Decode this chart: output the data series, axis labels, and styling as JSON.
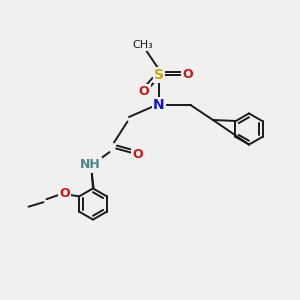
{
  "bg_color": "#f0f0f0",
  "bond_color": "#1a1a1a",
  "S_color": "#ccaa00",
  "N_color": "#1414cc",
  "O_color": "#cc1414",
  "NH_color": "#4a8888",
  "C_color": "#1a1a1a",
  "figsize": [
    3.0,
    3.0
  ],
  "dpi": 100,
  "xlim": [
    0,
    10
  ],
  "ylim": [
    0,
    10
  ]
}
